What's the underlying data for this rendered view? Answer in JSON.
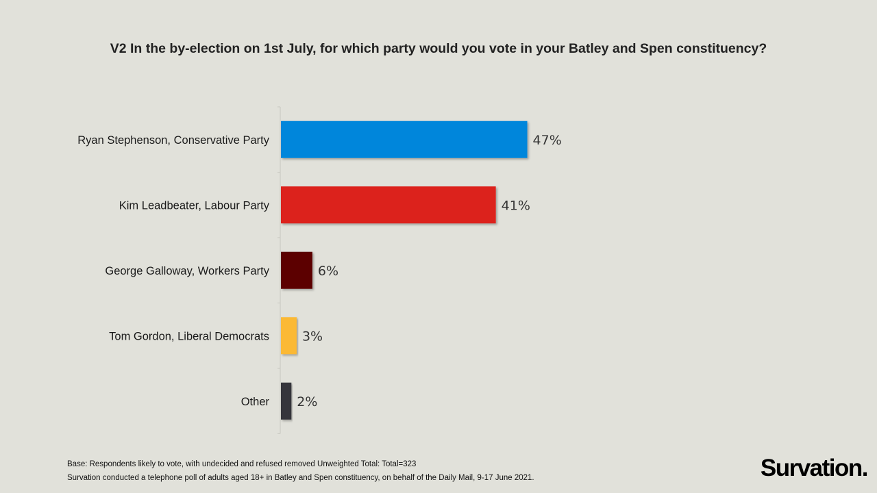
{
  "chart_data": {
    "type": "bar",
    "orientation": "horizontal",
    "title": "V2 In the by-election on 1st July, for which party would you vote in your Batley and Spen constituency?",
    "categories": [
      "Ryan Stephenson, Conservative Party",
      "Kim Leadbeater, Labour Party",
      "George Galloway, Workers Party",
      "Tom Gordon, Liberal Democrats",
      "Other"
    ],
    "values": [
      47,
      41,
      6,
      3,
      2
    ],
    "labels": [
      "47%",
      "41%",
      "6%",
      "3%",
      "2%"
    ],
    "colors": [
      "#0086db",
      "#dc231e",
      "#5c0000",
      "#fbb934",
      "#34363a"
    ],
    "unit": "%",
    "xlim": [
      0,
      100
    ],
    "grid": false
  },
  "notes": {
    "base": "Base: Respondents likely to vote, with undecided  and refused removed Unweighted  Total: Total=323",
    "method": "Survation conducted  a telephone  poll of adults aged 18+ in Batley and Spen constituency,  on behalf of the Daily Mail, 9-17 June 2021."
  },
  "logo": "Survation."
}
